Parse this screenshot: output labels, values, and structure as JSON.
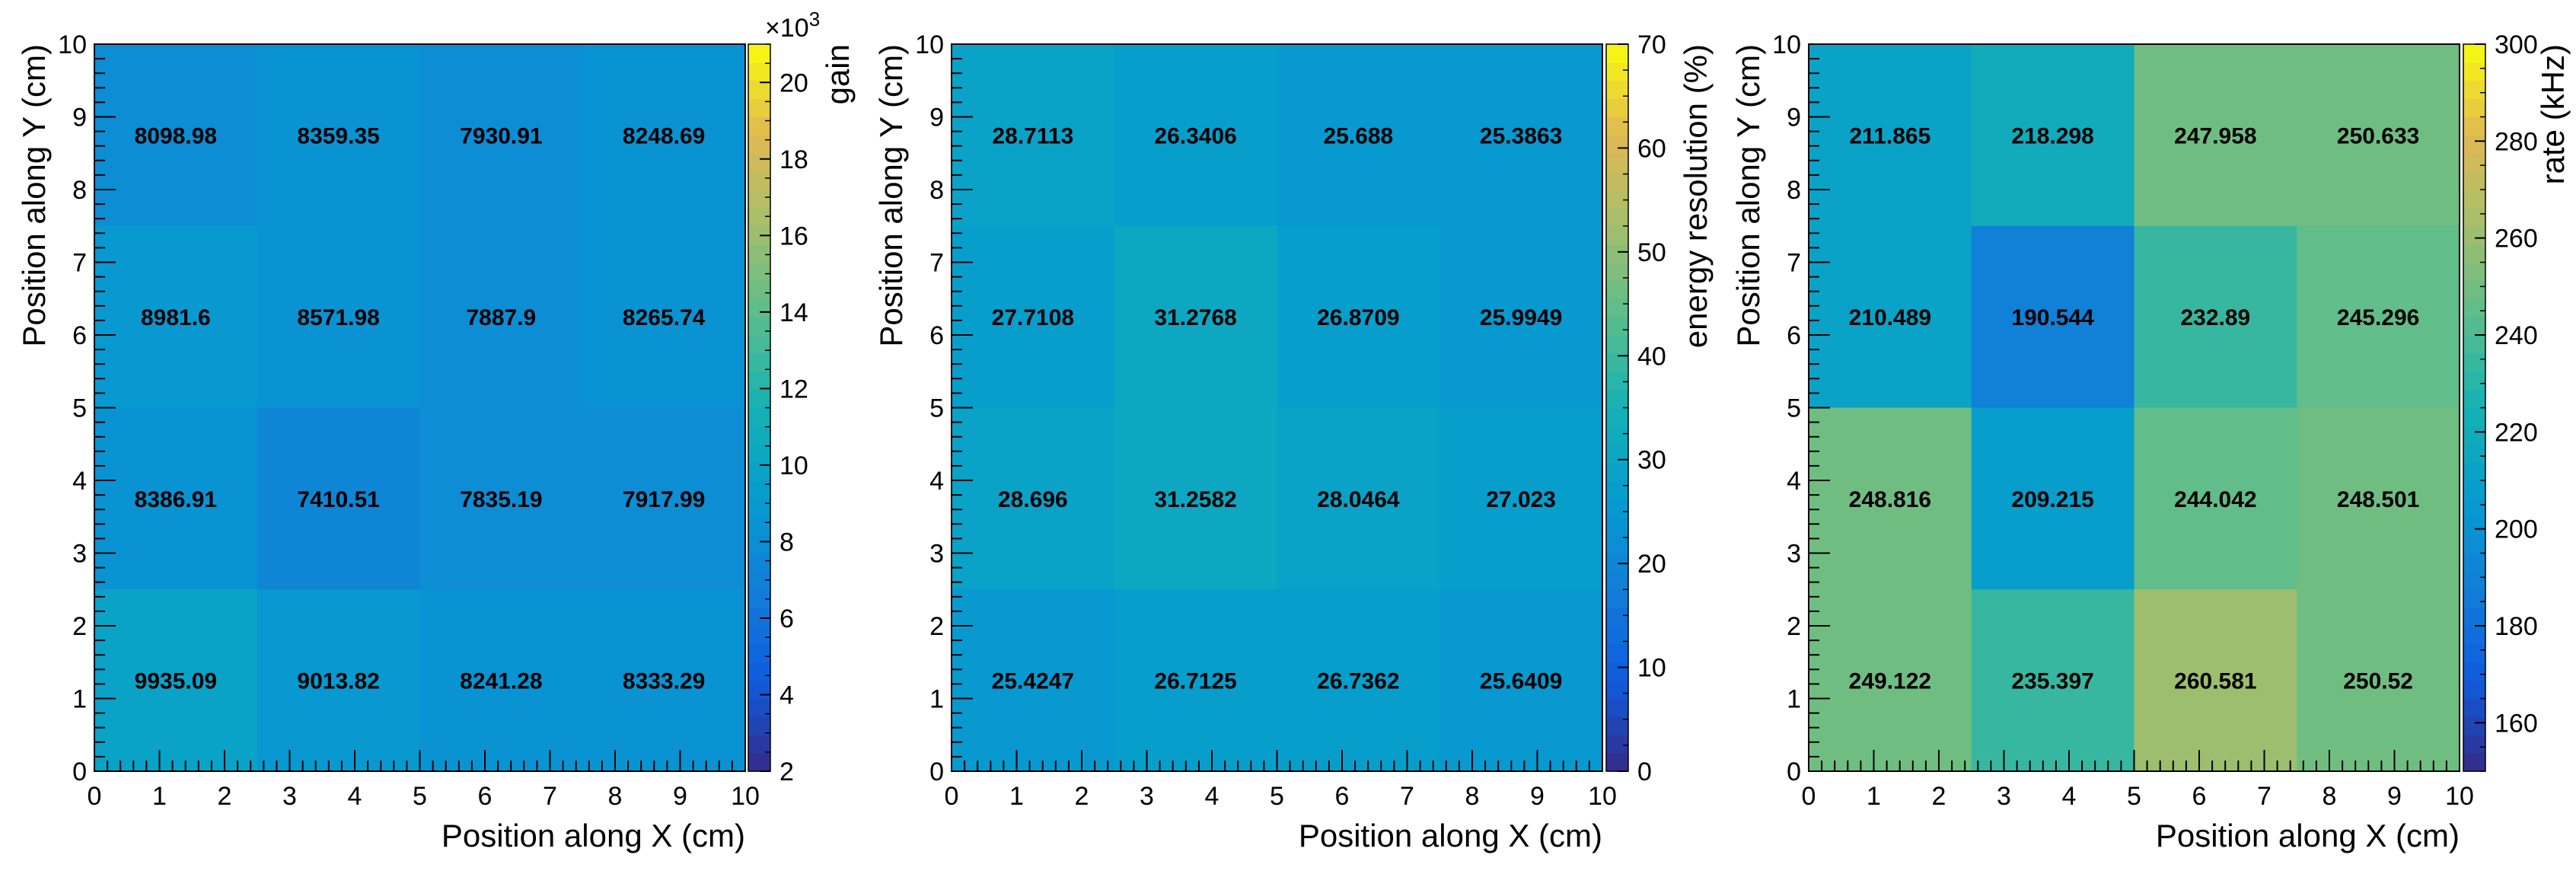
{
  "chart_data": [
    {
      "type": "heatmap",
      "xlabel": "Position along X (cm)",
      "ylabel": "Position along Y (cm)",
      "xlim": [
        0,
        10
      ],
      "ylim": [
        0,
        10
      ],
      "x_ticks": [
        "0",
        "1",
        "2",
        "3",
        "4",
        "5",
        "6",
        "7",
        "8",
        "9",
        "10"
      ],
      "y_ticks": [
        "0",
        "1",
        "2",
        "3",
        "4",
        "5",
        "6",
        "7",
        "8",
        "9",
        "10"
      ],
      "x_bin_edges": [
        0,
        2.5,
        5,
        7.5,
        10
      ],
      "y_bin_edges": [
        0,
        2.5,
        5,
        7.5,
        10
      ],
      "values_rows_top_to_bottom": [
        [
          "8098.98",
          "8359.35",
          "7930.91",
          "8248.69"
        ],
        [
          "8981.6",
          "8571.98",
          "7887.9",
          "8265.74"
        ],
        [
          "8386.91",
          "7410.51",
          "7835.19",
          "7917.99"
        ],
        [
          "9935.09",
          "9013.82",
          "8241.28",
          "8333.29"
        ]
      ],
      "colorbar": {
        "label": "gain",
        "exponent_label": "×10",
        "exponent_power": "3",
        "scale_factor": 1000,
        "range": [
          2,
          21
        ],
        "ticks": [
          "2",
          "4",
          "6",
          "8",
          "10",
          "12",
          "14",
          "16",
          "18",
          "20"
        ],
        "tick_values": [
          2,
          4,
          6,
          8,
          10,
          12,
          14,
          16,
          18,
          20
        ]
      }
    },
    {
      "type": "heatmap",
      "xlabel": "Position along X (cm)",
      "ylabel": "Position along Y (cm)",
      "xlim": [
        0,
        10
      ],
      "ylim": [
        0,
        10
      ],
      "x_ticks": [
        "0",
        "1",
        "2",
        "3",
        "4",
        "5",
        "6",
        "7",
        "8",
        "9",
        "10"
      ],
      "y_ticks": [
        "0",
        "1",
        "2",
        "3",
        "4",
        "5",
        "6",
        "7",
        "8",
        "9",
        "10"
      ],
      "x_bin_edges": [
        0,
        2.5,
        5,
        7.5,
        10
      ],
      "y_bin_edges": [
        0,
        2.5,
        5,
        7.5,
        10
      ],
      "values_rows_top_to_bottom": [
        [
          "28.7113",
          "26.3406",
          "25.688",
          "25.3863"
        ],
        [
          "27.7108",
          "31.2768",
          "26.8709",
          "25.9949"
        ],
        [
          "28.696",
          "31.2582",
          "28.0464",
          "27.023"
        ],
        [
          "25.4247",
          "26.7125",
          "26.7362",
          "25.6409"
        ]
      ],
      "colorbar": {
        "label": "energy resolution (%)",
        "range": [
          0,
          70
        ],
        "ticks": [
          "0",
          "10",
          "20",
          "30",
          "40",
          "50",
          "60",
          "70"
        ],
        "tick_values": [
          0,
          10,
          20,
          30,
          40,
          50,
          60,
          70
        ]
      }
    },
    {
      "type": "heatmap",
      "xlabel": "Position along X (cm)",
      "ylabel": "Position along Y (cm)",
      "xlim": [
        0,
        10
      ],
      "ylim": [
        0,
        10
      ],
      "x_ticks": [
        "0",
        "1",
        "2",
        "3",
        "4",
        "5",
        "6",
        "7",
        "8",
        "9",
        "10"
      ],
      "y_ticks": [
        "0",
        "1",
        "2",
        "3",
        "4",
        "5",
        "6",
        "7",
        "8",
        "9",
        "10"
      ],
      "x_bin_edges": [
        0,
        2.5,
        5,
        7.5,
        10
      ],
      "y_bin_edges": [
        0,
        2.5,
        5,
        7.5,
        10
      ],
      "values_rows_top_to_bottom": [
        [
          "211.865",
          "218.298",
          "247.958",
          "250.633"
        ],
        [
          "210.489",
          "190.544",
          "232.89",
          "245.296"
        ],
        [
          "248.816",
          "209.215",
          "244.042",
          "248.501"
        ],
        [
          "249.122",
          "235.397",
          "260.581",
          "250.52"
        ]
      ],
      "colorbar": {
        "label": "rate (kHz)",
        "range": [
          150,
          300
        ],
        "ticks": [
          "160",
          "180",
          "200",
          "220",
          "240",
          "260",
          "280",
          "300"
        ],
        "tick_values": [
          160,
          180,
          200,
          220,
          240,
          260,
          280,
          300
        ]
      }
    }
  ]
}
